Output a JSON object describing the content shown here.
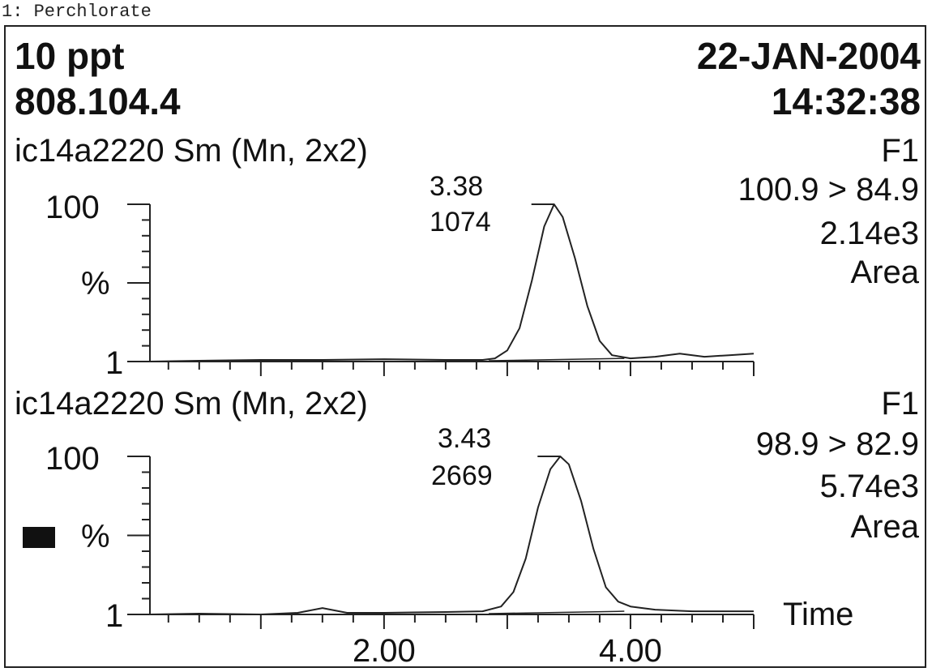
{
  "caption": "1: Perchlorate",
  "header": {
    "left_line1": "10 ppt",
    "left_line2": "808.104.4",
    "right_line1": "22-JAN-2004",
    "right_line2": "14:32:38"
  },
  "colors": {
    "trace": "#222222",
    "marker": "#111111"
  },
  "chart_data": [
    {
      "type": "line",
      "title": "ic14a2220 Sm (Mn, 2x2)",
      "function_label": "F1",
      "transition": "100.9 > 84.9",
      "intensity": "2.14e3",
      "mode_label": "Area",
      "ylabel": "%",
      "y_ticks": [
        "100",
        "1"
      ],
      "ylim": [
        1,
        100
      ],
      "xlim": [
        0.1,
        5.0
      ],
      "x_tick_labels": [],
      "peak": {
        "rt_label": "3.38",
        "area_label": "1074",
        "rt": 3.38,
        "height": 100
      },
      "x": [
        0.1,
        0.5,
        1.0,
        1.5,
        2.0,
        2.5,
        2.8,
        2.9,
        3.0,
        3.1,
        3.2,
        3.3,
        3.38,
        3.45,
        3.55,
        3.65,
        3.75,
        3.85,
        4.0,
        4.2,
        4.4,
        4.6,
        4.8,
        5.0
      ],
      "y": [
        1,
        1.5,
        2,
        2,
        2.5,
        2,
        2,
        3,
        8,
        22,
        52,
        86,
        100,
        92,
        66,
        36,
        14,
        5,
        3,
        4,
        6,
        4,
        5,
        6
      ]
    },
    {
      "type": "line",
      "title": "ic14a2220 Sm (Mn, 2x2)",
      "function_label": "F1",
      "transition": "98.9 > 82.9",
      "intensity": "5.74e3",
      "mode_label": "Area",
      "ylabel": "%",
      "y_ticks": [
        "100",
        "1"
      ],
      "ylim": [
        1,
        100
      ],
      "xlim": [
        0.1,
        5.0
      ],
      "x_axis_label": "Time",
      "x_tick_labels": [
        {
          "value": 2.0,
          "label": "2.00"
        },
        {
          "value": 4.0,
          "label": "4.00"
        }
      ],
      "peak": {
        "rt_label": "3.43",
        "area_label": "2669",
        "rt": 3.43,
        "height": 100
      },
      "x": [
        0.1,
        0.5,
        1.0,
        1.3,
        1.5,
        1.7,
        2.0,
        2.5,
        2.8,
        2.95,
        3.05,
        3.15,
        3.25,
        3.35,
        3.43,
        3.5,
        3.6,
        3.7,
        3.8,
        3.9,
        4.0,
        4.2,
        4.5,
        4.8,
        5.0
      ],
      "y": [
        1,
        1.5,
        1,
        2,
        5,
        2,
        2,
        2.5,
        3,
        6,
        15,
        36,
        68,
        92,
        100,
        95,
        72,
        42,
        18,
        9,
        6,
        4,
        3,
        3,
        3
      ]
    }
  ]
}
